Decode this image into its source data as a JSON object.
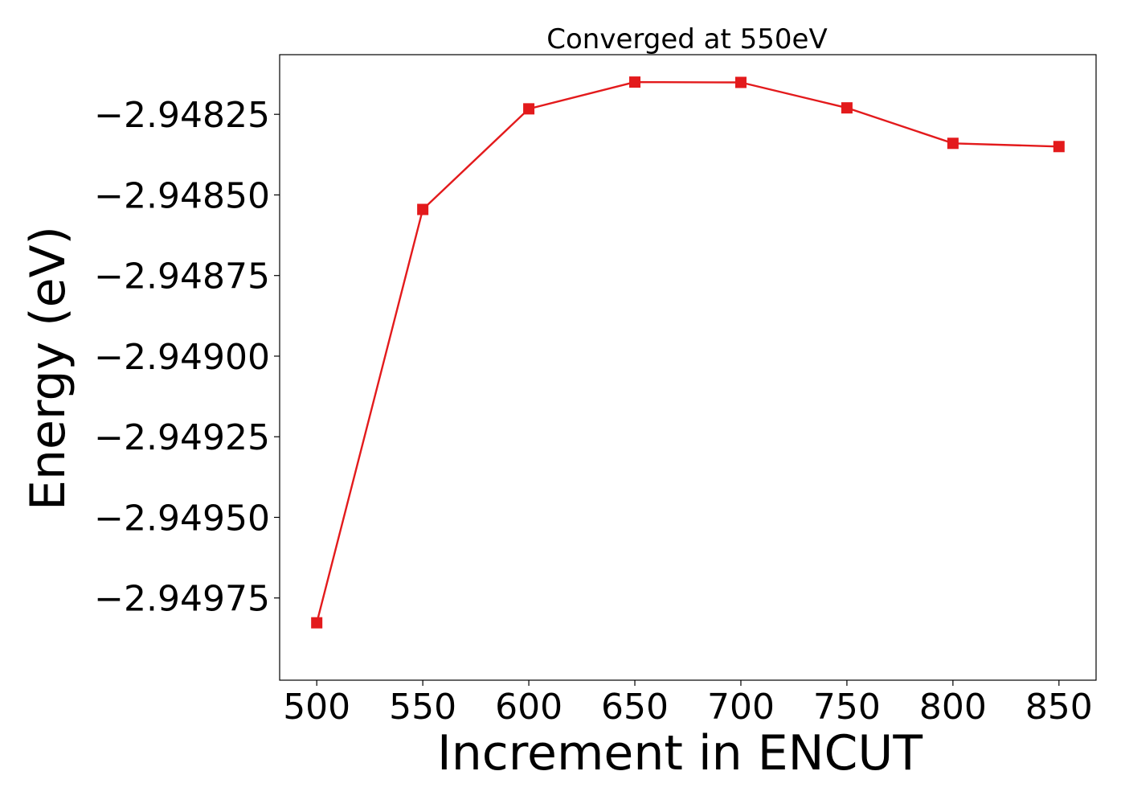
{
  "chart_data": {
    "type": "line",
    "title": "Converged at 550eV",
    "xlabel": "Increment in ENCUT",
    "ylabel": "Energy (eV)",
    "x": [
      500,
      550,
      600,
      650,
      700,
      750,
      800,
      850
    ],
    "series": [
      {
        "values": [
          -2.949827,
          -2.948545,
          -2.948233,
          -2.94815,
          -2.948151,
          -2.94823,
          -2.94834,
          -2.94835
        ],
        "color": "#e31a1c",
        "marker": "square"
      }
    ],
    "xticks": [
      500,
      550,
      600,
      650,
      700,
      750,
      800,
      850
    ],
    "xtick_labels": [
      "500",
      "550",
      "600",
      "650",
      "700",
      "750",
      "800",
      "850"
    ],
    "yticks": [
      -2.94825,
      -2.9485,
      -2.94875,
      -2.949,
      -2.94925,
      -2.9495,
      -2.94975
    ],
    "ytick_labels": [
      "−2.94825",
      "−2.94850",
      "−2.94875",
      "−2.94900",
      "−2.94925",
      "−2.94950",
      "−2.94975"
    ],
    "xlim": [
      482.5,
      867.5
    ],
    "ylim": [
      -2.950005,
      -2.948065
    ],
    "grid": false,
    "legend": "none"
  }
}
